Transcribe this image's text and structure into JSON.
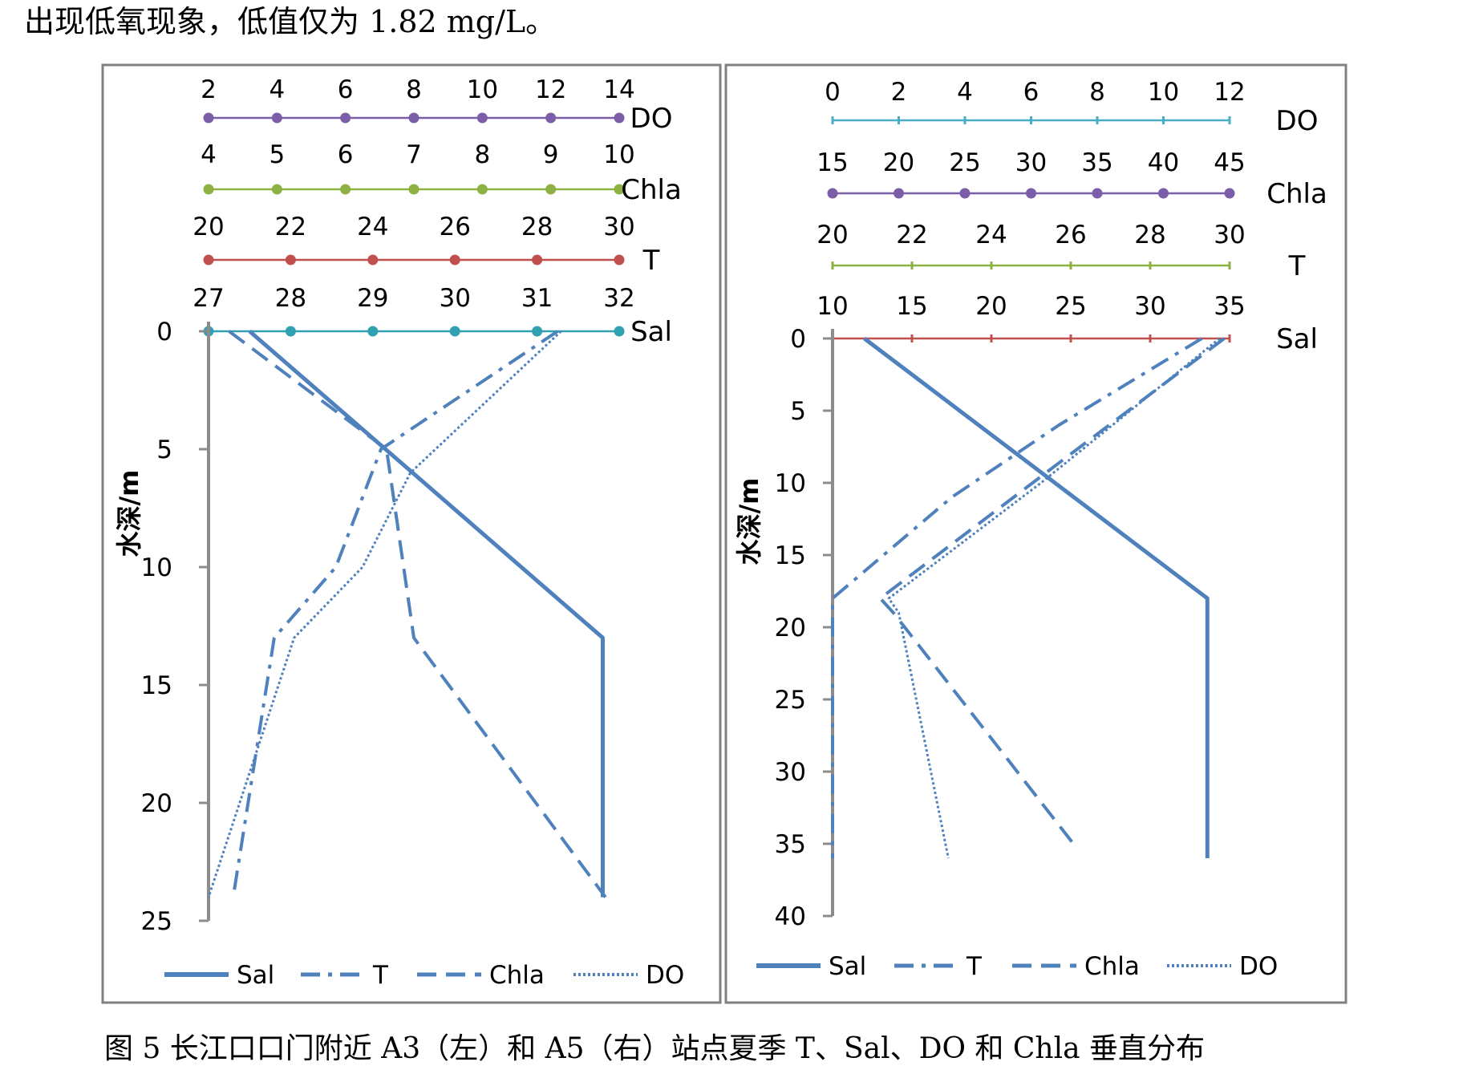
{
  "intro_text": "出现低氧现象，低值仅为 1.82 mg/L。",
  "caption": "图 5  长江口口门附近  A3（左）和 A5（右）站点夏季 T、Sal、DO 和 Chla 垂直分布",
  "colors": {
    "profile_line": "#4F81BD",
    "frame": "#808080",
    "do_axis_left": "#7B5EA7",
    "chla_axis_left": "#8DB143",
    "t_axis_left": "#C0504D",
    "sal_axis_left": "#31A0B3",
    "do_axis_right": "#4BACC6",
    "chla_axis_right": "#7B5EA7",
    "t_axis_right": "#8DB143",
    "sal_axis_right": "#C0504D"
  },
  "chart_data": [
    {
      "type": "line",
      "station": "A3",
      "ylabel": "水深/m",
      "y_axis": {
        "reversed": true,
        "range": [
          0,
          25
        ],
        "ticks": [
          "0",
          "5",
          "10",
          "15",
          "20",
          "25"
        ]
      },
      "top_axes": [
        {
          "name": "DO",
          "min": 2,
          "max": 14,
          "ticks": [
            "2",
            "4",
            "6",
            "8",
            "10",
            "12",
            "14"
          ]
        },
        {
          "name": "Chla",
          "min": 4,
          "max": 10,
          "ticks": [
            "4",
            "5",
            "6",
            "7",
            "8",
            "9",
            "10"
          ]
        },
        {
          "name": "T",
          "min": 20,
          "max": 30,
          "ticks": [
            "20",
            "22",
            "24",
            "26",
            "28",
            "30"
          ]
        },
        {
          "name": "Sal",
          "min": 27,
          "max": 32,
          "ticks": [
            "27",
            "28",
            "29",
            "30",
            "31",
            "32"
          ]
        }
      ],
      "legend_position": "bottom",
      "series": [
        {
          "name": "Sal",
          "style": "solid",
          "points": [
            [
              27.5,
              0
            ],
            [
              31.8,
              13
            ],
            [
              31.8,
              24
            ]
          ]
        },
        {
          "name": "T",
          "style": "dashdot",
          "points": [
            [
              28.5,
              0
            ],
            [
              24.2,
              5
            ],
            [
              23.1,
              10
            ],
            [
              21.6,
              13
            ],
            [
              20.6,
              24
            ]
          ]
        },
        {
          "name": "Chla",
          "style": "dashed",
          "points": [
            [
              4.3,
              0
            ],
            [
              6.6,
              5
            ],
            [
              7.0,
              13
            ],
            [
              9.8,
              24
            ]
          ]
        },
        {
          "name": "DO",
          "style": "dotted",
          "points": [
            [
              12.3,
              0
            ],
            [
              7.9,
              6
            ],
            [
              6.5,
              10
            ],
            [
              4.5,
              13
            ],
            [
              2.0,
              24
            ]
          ]
        }
      ]
    },
    {
      "type": "line",
      "station": "A5",
      "ylabel": "水深/m",
      "y_axis": {
        "reversed": true,
        "range": [
          0,
          40
        ],
        "ticks": [
          "0",
          "5",
          "10",
          "15",
          "20",
          "25",
          "30",
          "35",
          "40"
        ]
      },
      "top_axes": [
        {
          "name": "DO",
          "min": 0,
          "max": 12,
          "ticks": [
            "0",
            "2",
            "4",
            "6",
            "8",
            "10",
            "12"
          ]
        },
        {
          "name": "Chla",
          "min": 15,
          "max": 45,
          "ticks": [
            "15",
            "20",
            "25",
            "30",
            "35",
            "40",
            "45"
          ]
        },
        {
          "name": "T",
          "min": 20,
          "max": 30,
          "ticks": [
            "20",
            "22",
            "24",
            "26",
            "28",
            "30"
          ]
        },
        {
          "name": "Sal",
          "min": 10,
          "max": 35,
          "ticks": [
            "10",
            "15",
            "20",
            "25",
            "30",
            "35"
          ]
        }
      ],
      "legend_position": "bottom",
      "series": [
        {
          "name": "Sal",
          "style": "solid",
          "points": [
            [
              12,
              0
            ],
            [
              33.6,
              18
            ],
            [
              33.6,
              36
            ]
          ]
        },
        {
          "name": "T",
          "style": "dashdot",
          "points": [
            [
              29.3,
              0
            ],
            [
              25.7,
              6
            ],
            [
              23.0,
              11
            ],
            [
              20.0,
              18
            ],
            [
              20.0,
              36
            ]
          ]
        },
        {
          "name": "Chla",
          "style": "dashed",
          "points": [
            [
              44.6,
              0
            ],
            [
              33.0,
              8
            ],
            [
              18.6,
              18
            ],
            [
              19.6,
              19
            ],
            [
              33.2,
              35
            ]
          ]
        },
        {
          "name": "DO",
          "style": "dotted",
          "points": [
            [
              11.7,
              0
            ],
            [
              6.3,
              10
            ],
            [
              1.7,
              18
            ],
            [
              2.0,
              19
            ],
            [
              3.5,
              36
            ]
          ]
        }
      ]
    }
  ]
}
